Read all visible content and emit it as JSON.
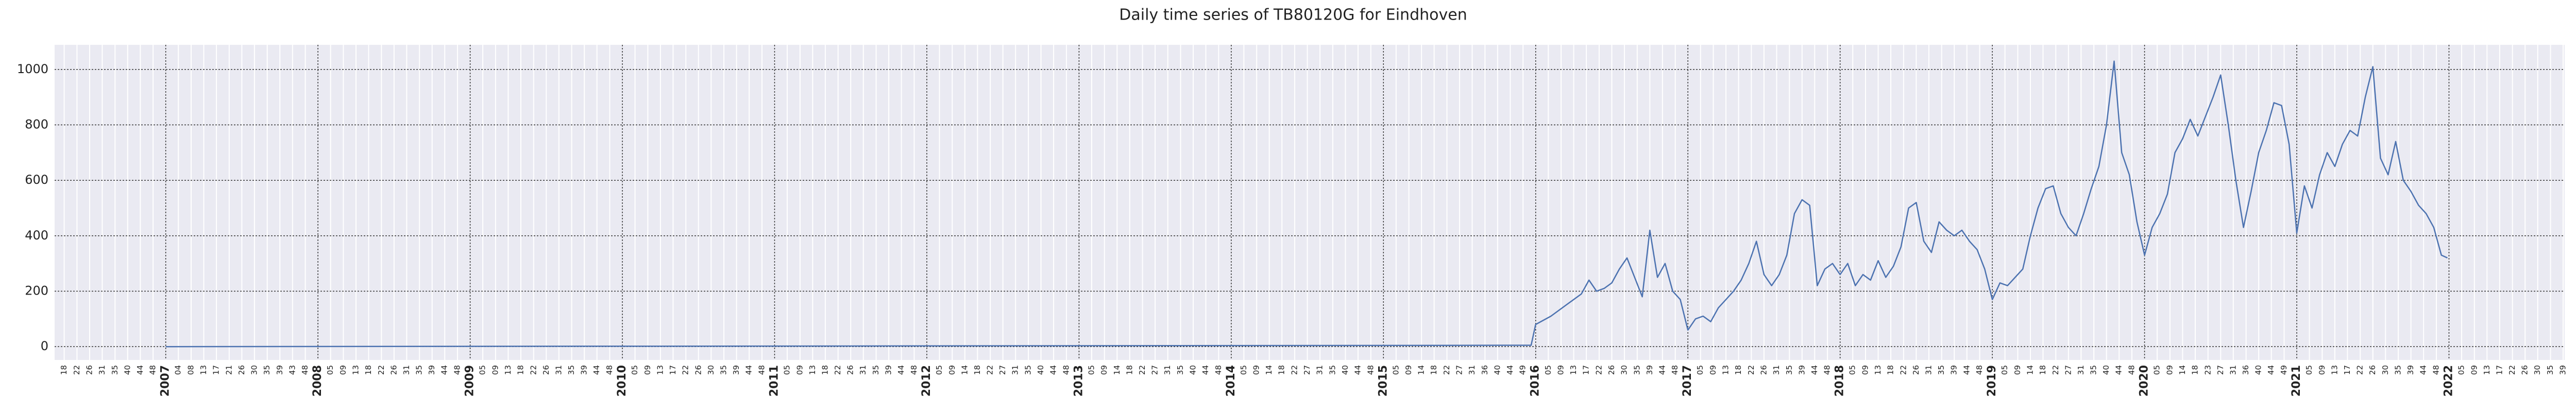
{
  "chart_data": {
    "type": "line",
    "title": "Daily time series of TB80120G for Eindhoven",
    "color": "#4c72b0",
    "background": "#eaeaf2",
    "grid": true,
    "xlim": [
      2006.27,
      2022.76
    ],
    "ylim": [
      -48,
      1089
    ],
    "yticks": [
      0,
      200,
      400,
      600,
      800,
      1000
    ],
    "xticks": [
      2007,
      2008,
      2009,
      2010,
      2011,
      2012,
      2013,
      2014,
      2015,
      2016,
      2017,
      2018,
      2019,
      2020,
      2021,
      2022
    ],
    "xminorticks": [
      {
        "value": 2006.333,
        "label": "18"
      },
      {
        "value": 2006.417,
        "label": "22"
      },
      {
        "value": 2006.5,
        "label": "26"
      },
      {
        "value": 2006.583,
        "label": "31"
      },
      {
        "value": 2006.667,
        "label": "35"
      },
      {
        "value": 2006.75,
        "label": "40"
      },
      {
        "value": 2006.833,
        "label": "44"
      },
      {
        "value": 2006.917,
        "label": "48"
      },
      {
        "value": 2007.083,
        "label": "04"
      },
      {
        "value": 2007.167,
        "label": "08"
      },
      {
        "value": 2007.25,
        "label": "13"
      },
      {
        "value": 2007.333,
        "label": "17"
      },
      {
        "value": 2007.417,
        "label": "21"
      },
      {
        "value": 2007.5,
        "label": "26"
      },
      {
        "value": 2007.583,
        "label": "30"
      },
      {
        "value": 2007.667,
        "label": "35"
      },
      {
        "value": 2007.75,
        "label": "39"
      },
      {
        "value": 2007.833,
        "label": "43"
      },
      {
        "value": 2007.917,
        "label": "48"
      },
      {
        "value": 2008.083,
        "label": "05"
      },
      {
        "value": 2008.167,
        "label": "09"
      },
      {
        "value": 2008.25,
        "label": "13"
      },
      {
        "value": 2008.333,
        "label": "18"
      },
      {
        "value": 2008.417,
        "label": "22"
      },
      {
        "value": 2008.5,
        "label": "26"
      },
      {
        "value": 2008.583,
        "label": "31"
      },
      {
        "value": 2008.667,
        "label": "35"
      },
      {
        "value": 2008.75,
        "label": "39"
      },
      {
        "value": 2008.833,
        "label": "44"
      },
      {
        "value": 2008.917,
        "label": "48"
      },
      {
        "value": 2009.083,
        "label": "05"
      },
      {
        "value": 2009.167,
        "label": "09"
      },
      {
        "value": 2009.25,
        "label": "13"
      },
      {
        "value": 2009.333,
        "label": "18"
      },
      {
        "value": 2009.417,
        "label": "22"
      },
      {
        "value": 2009.5,
        "label": "26"
      },
      {
        "value": 2009.583,
        "label": "31"
      },
      {
        "value": 2009.667,
        "label": "35"
      },
      {
        "value": 2009.75,
        "label": "39"
      },
      {
        "value": 2009.833,
        "label": "44"
      },
      {
        "value": 2009.917,
        "label": "48"
      },
      {
        "value": 2010.083,
        "label": "05"
      },
      {
        "value": 2010.167,
        "label": "09"
      },
      {
        "value": 2010.25,
        "label": "13"
      },
      {
        "value": 2010.333,
        "label": "17"
      },
      {
        "value": 2010.417,
        "label": "22"
      },
      {
        "value": 2010.5,
        "label": "26"
      },
      {
        "value": 2010.583,
        "label": "30"
      },
      {
        "value": 2010.667,
        "label": "35"
      },
      {
        "value": 2010.75,
        "label": "39"
      },
      {
        "value": 2010.833,
        "label": "44"
      },
      {
        "value": 2010.917,
        "label": "48"
      },
      {
        "value": 2011.083,
        "label": "05"
      },
      {
        "value": 2011.167,
        "label": "09"
      },
      {
        "value": 2011.25,
        "label": "13"
      },
      {
        "value": 2011.333,
        "label": "18"
      },
      {
        "value": 2011.417,
        "label": "22"
      },
      {
        "value": 2011.5,
        "label": "26"
      },
      {
        "value": 2011.583,
        "label": "31"
      },
      {
        "value": 2011.667,
        "label": "35"
      },
      {
        "value": 2011.75,
        "label": "39"
      },
      {
        "value": 2011.833,
        "label": "44"
      },
      {
        "value": 2011.917,
        "label": "48"
      },
      {
        "value": 2012.083,
        "label": "05"
      },
      {
        "value": 2012.167,
        "label": "09"
      },
      {
        "value": 2012.25,
        "label": "14"
      },
      {
        "value": 2012.333,
        "label": "18"
      },
      {
        "value": 2012.417,
        "label": "22"
      },
      {
        "value": 2012.5,
        "label": "27"
      },
      {
        "value": 2012.583,
        "label": "31"
      },
      {
        "value": 2012.667,
        "label": "35"
      },
      {
        "value": 2012.75,
        "label": "40"
      },
      {
        "value": 2012.833,
        "label": "44"
      },
      {
        "value": 2012.917,
        "label": "48"
      },
      {
        "value": 2013.083,
        "label": "05"
      },
      {
        "value": 2013.167,
        "label": "09"
      },
      {
        "value": 2013.25,
        "label": "14"
      },
      {
        "value": 2013.333,
        "label": "18"
      },
      {
        "value": 2013.417,
        "label": "22"
      },
      {
        "value": 2013.5,
        "label": "27"
      },
      {
        "value": 2013.583,
        "label": "31"
      },
      {
        "value": 2013.667,
        "label": "35"
      },
      {
        "value": 2013.75,
        "label": "40"
      },
      {
        "value": 2013.833,
        "label": "44"
      },
      {
        "value": 2013.917,
        "label": "48"
      },
      {
        "value": 2014.083,
        "label": "05"
      },
      {
        "value": 2014.167,
        "label": "09"
      },
      {
        "value": 2014.25,
        "label": "14"
      },
      {
        "value": 2014.333,
        "label": "18"
      },
      {
        "value": 2014.417,
        "label": "22"
      },
      {
        "value": 2014.5,
        "label": "27"
      },
      {
        "value": 2014.583,
        "label": "31"
      },
      {
        "value": 2014.667,
        "label": "35"
      },
      {
        "value": 2014.75,
        "label": "40"
      },
      {
        "value": 2014.833,
        "label": "44"
      },
      {
        "value": 2014.917,
        "label": "48"
      },
      {
        "value": 2015.083,
        "label": "05"
      },
      {
        "value": 2015.167,
        "label": "09"
      },
      {
        "value": 2015.25,
        "label": "14"
      },
      {
        "value": 2015.333,
        "label": "18"
      },
      {
        "value": 2015.417,
        "label": "22"
      },
      {
        "value": 2015.5,
        "label": "27"
      },
      {
        "value": 2015.583,
        "label": "31"
      },
      {
        "value": 2015.667,
        "label": "36"
      },
      {
        "value": 2015.75,
        "label": "40"
      },
      {
        "value": 2015.833,
        "label": "44"
      },
      {
        "value": 2015.917,
        "label": "49"
      },
      {
        "value": 2016.083,
        "label": "05"
      },
      {
        "value": 2016.167,
        "label": "09"
      },
      {
        "value": 2016.25,
        "label": "13"
      },
      {
        "value": 2016.333,
        "label": "17"
      },
      {
        "value": 2016.417,
        "label": "22"
      },
      {
        "value": 2016.5,
        "label": "26"
      },
      {
        "value": 2016.583,
        "label": "30"
      },
      {
        "value": 2016.667,
        "label": "35"
      },
      {
        "value": 2016.75,
        "label": "39"
      },
      {
        "value": 2016.833,
        "label": "44"
      },
      {
        "value": 2016.917,
        "label": "48"
      },
      {
        "value": 2017.083,
        "label": "05"
      },
      {
        "value": 2017.167,
        "label": "09"
      },
      {
        "value": 2017.25,
        "label": "13"
      },
      {
        "value": 2017.333,
        "label": "18"
      },
      {
        "value": 2017.417,
        "label": "22"
      },
      {
        "value": 2017.5,
        "label": "26"
      },
      {
        "value": 2017.583,
        "label": "31"
      },
      {
        "value": 2017.667,
        "label": "35"
      },
      {
        "value": 2017.75,
        "label": "39"
      },
      {
        "value": 2017.833,
        "label": "44"
      },
      {
        "value": 2017.917,
        "label": "48"
      },
      {
        "value": 2018.083,
        "label": "05"
      },
      {
        "value": 2018.167,
        "label": "09"
      },
      {
        "value": 2018.25,
        "label": "13"
      },
      {
        "value": 2018.333,
        "label": "18"
      },
      {
        "value": 2018.417,
        "label": "22"
      },
      {
        "value": 2018.5,
        "label": "26"
      },
      {
        "value": 2018.583,
        "label": "31"
      },
      {
        "value": 2018.667,
        "label": "35"
      },
      {
        "value": 2018.75,
        "label": "39"
      },
      {
        "value": 2018.833,
        "label": "44"
      },
      {
        "value": 2018.917,
        "label": "48"
      },
      {
        "value": 2019.083,
        "label": "05"
      },
      {
        "value": 2019.167,
        "label": "09"
      },
      {
        "value": 2019.25,
        "label": "14"
      },
      {
        "value": 2019.333,
        "label": "18"
      },
      {
        "value": 2019.417,
        "label": "22"
      },
      {
        "value": 2019.5,
        "label": "27"
      },
      {
        "value": 2019.583,
        "label": "31"
      },
      {
        "value": 2019.667,
        "label": "35"
      },
      {
        "value": 2019.75,
        "label": "40"
      },
      {
        "value": 2019.833,
        "label": "44"
      },
      {
        "value": 2019.917,
        "label": "48"
      },
      {
        "value": 2020.083,
        "label": "05"
      },
      {
        "value": 2020.167,
        "label": "09"
      },
      {
        "value": 2020.25,
        "label": "14"
      },
      {
        "value": 2020.333,
        "label": "18"
      },
      {
        "value": 2020.417,
        "label": "23"
      },
      {
        "value": 2020.5,
        "label": "27"
      },
      {
        "value": 2020.583,
        "label": "31"
      },
      {
        "value": 2020.667,
        "label": "36"
      },
      {
        "value": 2020.75,
        "label": "40"
      },
      {
        "value": 2020.833,
        "label": "44"
      },
      {
        "value": 2020.917,
        "label": "49"
      },
      {
        "value": 2021.083,
        "label": "05"
      },
      {
        "value": 2021.167,
        "label": "09"
      },
      {
        "value": 2021.25,
        "label": "13"
      },
      {
        "value": 2021.333,
        "label": "17"
      },
      {
        "value": 2021.417,
        "label": "22"
      },
      {
        "value": 2021.5,
        "label": "26"
      },
      {
        "value": 2021.583,
        "label": "30"
      },
      {
        "value": 2021.667,
        "label": "35"
      },
      {
        "value": 2021.75,
        "label": "39"
      },
      {
        "value": 2021.833,
        "label": "44"
      },
      {
        "value": 2021.917,
        "label": "48"
      },
      {
        "value": 2022.083,
        "label": "05"
      },
      {
        "value": 2022.167,
        "label": "09"
      },
      {
        "value": 2022.25,
        "label": "13"
      },
      {
        "value": 2022.333,
        "label": "17"
      },
      {
        "value": 2022.417,
        "label": "22"
      },
      {
        "value": 2022.5,
        "label": "26"
      },
      {
        "value": 2022.583,
        "label": "30"
      },
      {
        "value": 2022.667,
        "label": "35"
      },
      {
        "value": 2022.75,
        "label": "39"
      }
    ],
    "x": [
      2007.0,
      2011.0,
      2015.97,
      2016.0,
      2016.1,
      2016.2,
      2016.3,
      2016.35,
      2016.4,
      2016.45,
      2016.5,
      2016.55,
      2016.6,
      2016.65,
      2016.7,
      2016.75,
      2016.8,
      2016.85,
      2016.9,
      2016.95,
      2017.0,
      2017.05,
      2017.1,
      2017.15,
      2017.2,
      2017.25,
      2017.3,
      2017.35,
      2017.4,
      2017.45,
      2017.5,
      2017.55,
      2017.6,
      2017.65,
      2017.7,
      2017.75,
      2017.8,
      2017.85,
      2017.9,
      2017.95,
      2018.0,
      2018.05,
      2018.1,
      2018.15,
      2018.2,
      2018.25,
      2018.3,
      2018.35,
      2018.4,
      2018.45,
      2018.5,
      2018.55,
      2018.6,
      2018.65,
      2018.7,
      2018.75,
      2018.8,
      2018.85,
      2018.9,
      2018.95,
      2019.0,
      2019.05,
      2019.1,
      2019.15,
      2019.2,
      2019.25,
      2019.3,
      2019.35,
      2019.4,
      2019.45,
      2019.5,
      2019.55,
      2019.6,
      2019.65,
      2019.7,
      2019.75,
      2019.8,
      2019.85,
      2019.9,
      2019.95,
      2020.0,
      2020.05,
      2020.1,
      2020.15,
      2020.2,
      2020.25,
      2020.3,
      2020.35,
      2020.4,
      2020.45,
      2020.5,
      2020.55,
      2020.6,
      2020.65,
      2020.7,
      2020.75,
      2020.8,
      2020.85,
      2020.9,
      2020.95,
      2021.0,
      2021.05,
      2021.1,
      2021.15,
      2021.2,
      2021.25,
      2021.3,
      2021.35,
      2021.4,
      2021.45,
      2021.5,
      2021.55,
      2021.6,
      2021.65,
      2021.7,
      2021.75,
      2021.8,
      2021.85,
      2021.9,
      2021.95,
      2021.99
    ],
    "values": [
      0,
      2,
      5,
      80,
      110,
      150,
      190,
      240,
      200,
      210,
      230,
      280,
      320,
      250,
      180,
      420,
      250,
      300,
      200,
      170,
      60,
      100,
      110,
      90,
      140,
      170,
      200,
      240,
      300,
      380,
      260,
      220,
      260,
      330,
      480,
      530,
      510,
      220,
      280,
      300,
      260,
      300,
      220,
      260,
      240,
      310,
      250,
      290,
      360,
      500,
      520,
      380,
      340,
      450,
      420,
      400,
      420,
      380,
      350,
      280,
      170,
      230,
      220,
      250,
      280,
      400,
      500,
      570,
      580,
      480,
      430,
      400,
      480,
      570,
      650,
      800,
      1030,
      700,
      620,
      450,
      330,
      430,
      480,
      550,
      700,
      750,
      820,
      760,
      830,
      900,
      980,
      800,
      600,
      430,
      560,
      700,
      780,
      880,
      870,
      730,
      410,
      580,
      500,
      620,
      700,
      650,
      730,
      780,
      760,
      900,
      1010,
      680,
      620,
      740,
      600,
      560,
      510,
      480,
      430,
      330,
      320
    ]
  }
}
